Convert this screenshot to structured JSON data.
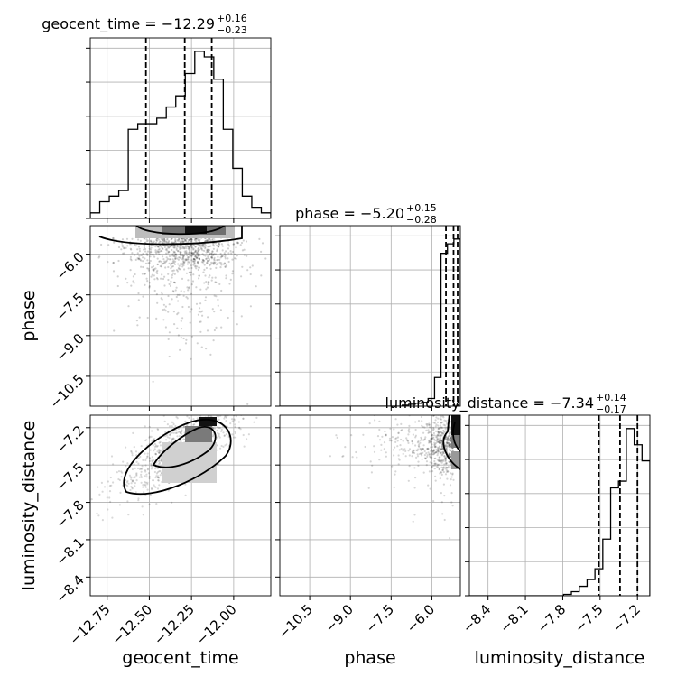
{
  "chart_data": {
    "type": "corner",
    "parameters": [
      {
        "name": "geocent_time",
        "title_main": "geocent_time = −12.29",
        "title_plus": "+0.16",
        "title_minus": "−0.23",
        "median": -12.29,
        "quantiles": [
          -12.52,
          -12.29,
          -12.13
        ],
        "range": [
          -12.85,
          -11.78
        ],
        "ticks": [
          -12.75,
          -12.5,
          -12.25,
          -12.0
        ],
        "tick_labels": [
          "−12.75",
          "−12.50",
          "−12.25",
          "−12.00"
        ],
        "hist_counts": [
          1,
          3,
          4,
          5,
          16,
          17,
          17,
          18,
          20,
          22,
          26,
          30,
          29,
          25,
          16,
          9,
          4,
          2,
          1
        ],
        "hist_edges": [
          -12.85,
          -11.78
        ]
      },
      {
        "name": "phase",
        "title_main": "phase = −5.20",
        "title_plus": "+0.15",
        "title_minus": "−0.28",
        "median": -5.2,
        "quantiles": [
          -5.48,
          -5.2,
          -5.05
        ],
        "range": [
          -11.6,
          -4.95
        ],
        "ticks": [
          -10.5,
          -9.0,
          -7.5,
          -6.0
        ],
        "tick_labels": [
          "−10.5",
          "−9.0",
          "−7.5",
          "−6.0"
        ],
        "hist_counts": [
          0,
          0,
          0,
          0,
          0,
          0,
          0,
          0,
          0,
          0,
          0,
          0,
          0,
          0,
          0,
          0,
          0,
          0,
          0,
          1,
          2,
          3,
          4,
          8,
          30,
          160,
          170,
          175
        ],
        "hist_edges": [
          -11.6,
          -4.95
        ]
      },
      {
        "name": "luminosity_distance",
        "title_main": "luminosity_distance = −7.34",
        "title_plus": "+0.14",
        "title_minus": "−0.17",
        "median": -7.34,
        "quantiles": [
          -7.51,
          -7.34,
          -7.2
        ],
        "range": [
          -8.55,
          -7.1
        ],
        "ticks": [
          -8.4,
          -8.1,
          -7.8,
          -7.5,
          -7.2
        ],
        "tick_labels": [
          "−8.4",
          "−8.1",
          "−7.8",
          "−7.5",
          "−7.2"
        ],
        "hist_counts": [
          0,
          0,
          0,
          0,
          0,
          0,
          0,
          0,
          0,
          0,
          0,
          0,
          1,
          3,
          7,
          12,
          20,
          42,
          80,
          85,
          124,
          112,
          100
        ],
        "hist_edges": [
          -8.55,
          -7.1
        ]
      }
    ],
    "pairs": [
      {
        "x": "geocent_time",
        "y": "phase",
        "note": "2D density with 1-sigma/2-sigma contours"
      },
      {
        "x": "geocent_time",
        "y": "luminosity_distance",
        "note": "2D density with 1-sigma/2-sigma contours"
      },
      {
        "x": "phase",
        "y": "luminosity_distance",
        "note": "2D density with 1-sigma/2-sigma contours"
      }
    ],
    "grid": true
  }
}
